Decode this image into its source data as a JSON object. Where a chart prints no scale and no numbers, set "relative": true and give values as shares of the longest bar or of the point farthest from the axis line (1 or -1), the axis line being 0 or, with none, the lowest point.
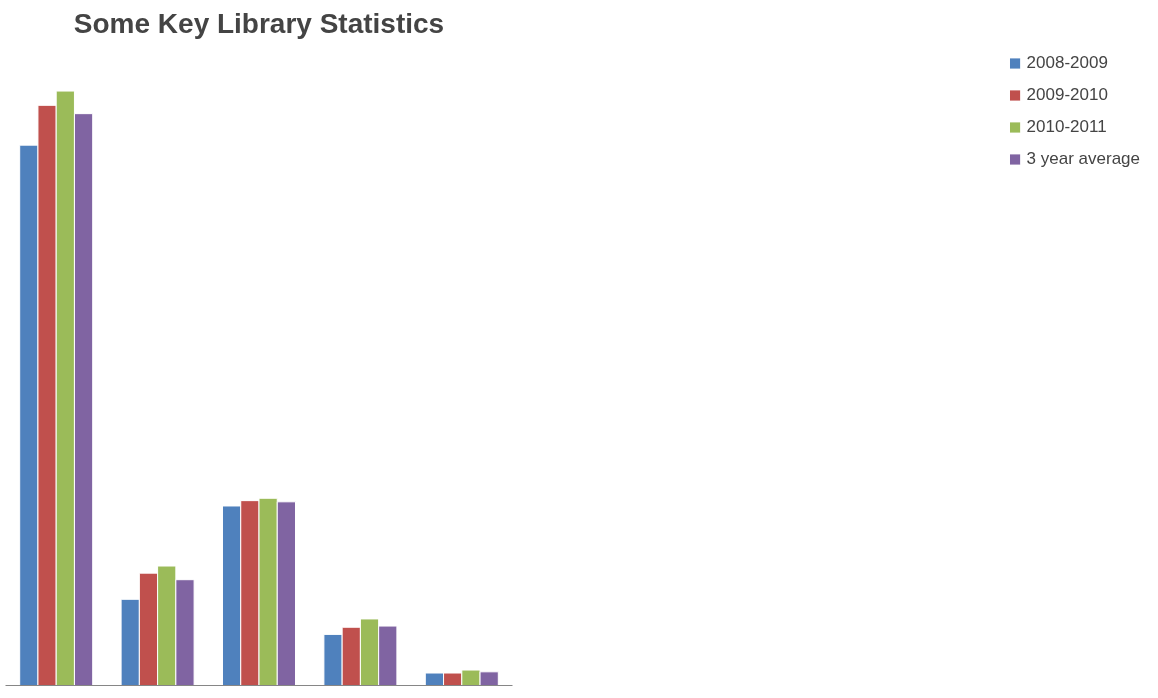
{
  "chart_data": {
    "type": "bar",
    "title": "Some Key Library Statistics",
    "relative": true,
    "categories": [
      null,
      null,
      null,
      null,
      null
    ],
    "legend": "right",
    "series": [
      {
        "name": "2008-2009",
        "color": "#4f81bd",
        "values": [
          0.909,
          0.145,
          0.302,
          0.086,
          0.021
        ]
      },
      {
        "name": "2009-2010",
        "color": "#c0504d",
        "values": [
          0.976,
          0.189,
          0.311,
          0.098,
          0.021
        ]
      },
      {
        "name": "2010-2011",
        "color": "#9bbb59",
        "values": [
          1,
          0.201,
          0.315,
          0.112,
          0.026
        ]
      },
      {
        "name": "3 year average",
        "color": "#8064a2",
        "values": [
          0.962,
          0.178,
          0.309,
          0.1,
          0.023
        ]
      }
    ]
  }
}
